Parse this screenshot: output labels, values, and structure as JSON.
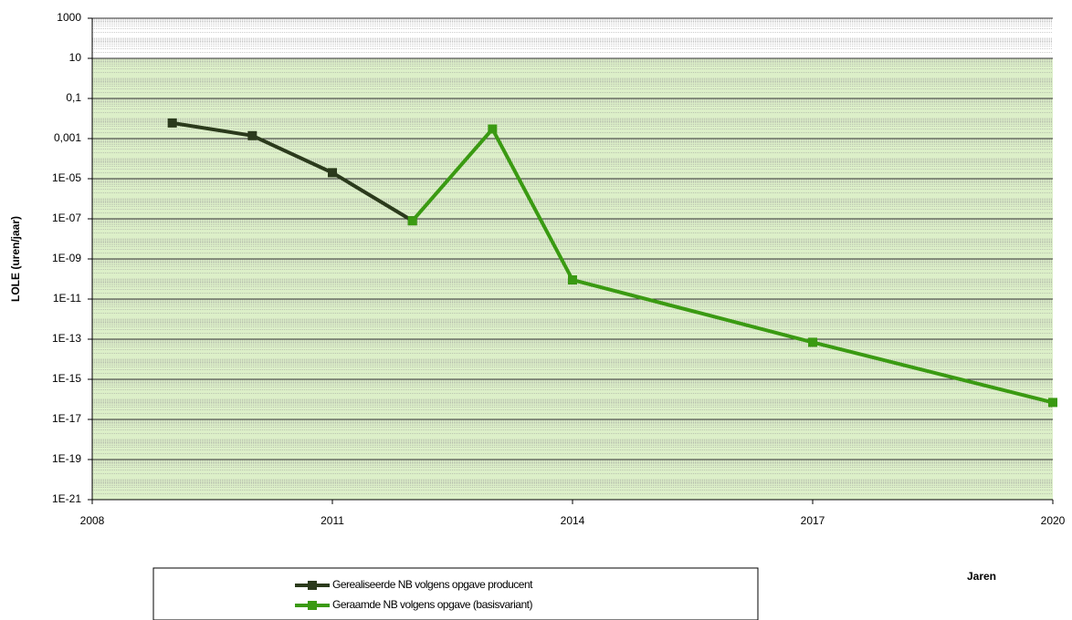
{
  "chart_data": {
    "type": "line",
    "y_label": "LOLE (uren/jaar)",
    "x_label": "Jaren",
    "log_y": true,
    "grid": true,
    "ylim": [
      1e-21,
      1000
    ],
    "yticks": [
      1000,
      10,
      {
        "value": 0.1,
        "label": "0,1"
      },
      {
        "value": 0.001,
        "label": "0,001"
      },
      {
        "value": 1e-05,
        "label": "1E-05"
      },
      {
        "value": 1e-07,
        "label": "1E-07"
      },
      {
        "value": 1e-09,
        "label": "1E-09"
      },
      {
        "value": 1e-11,
        "label": "1E-11"
      },
      {
        "value": 1e-13,
        "label": "1E-13"
      },
      {
        "value": 1e-15,
        "label": "1E-15"
      },
      {
        "value": 1e-17,
        "label": "1E-17"
      },
      {
        "value": 1e-19,
        "label": "1E-19"
      },
      {
        "value": 1e-21,
        "label": "1E-21"
      }
    ],
    "xlim": [
      2008,
      2020
    ],
    "xticks": [
      2008,
      2011,
      2014,
      2017,
      2020
    ],
    "series": [
      {
        "name": "Gerealiseerde NB volgens opgave producent",
        "color": "#2b3a1c",
        "x": [
          2009,
          2010,
          2011,
          2012
        ],
        "values": [
          0.006,
          0.0014,
          2e-05,
          8e-08
        ]
      },
      {
        "name": "Geraamde NB volgens opgave (basisvariant)",
        "color": "#3a9a12",
        "x": [
          2012,
          2013,
          2014,
          2017,
          2020
        ],
        "values": [
          8e-08,
          0.003,
          9e-11,
          7e-14,
          7e-17
        ]
      }
    ]
  }
}
